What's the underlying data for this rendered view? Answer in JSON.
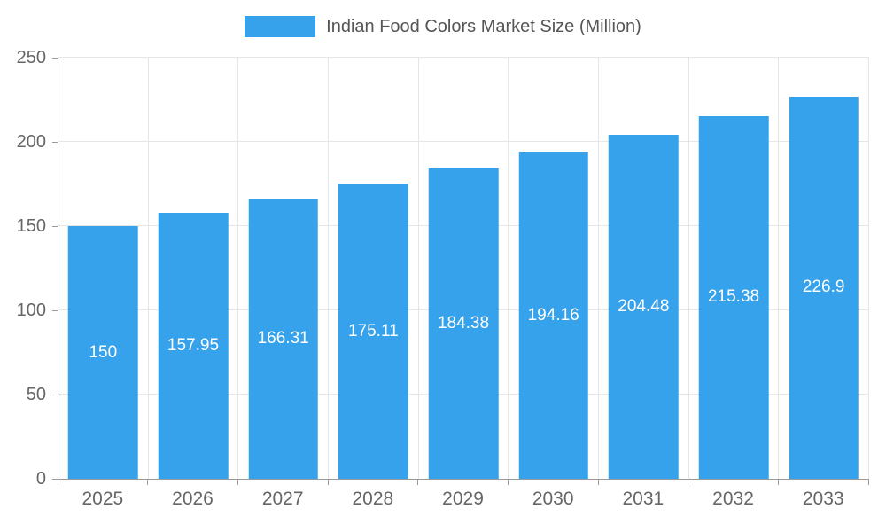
{
  "chart_data": {
    "type": "bar",
    "title": "Indian Food Colors Market Size (Million)",
    "categories": [
      "2025",
      "2026",
      "2027",
      "2028",
      "2029",
      "2030",
      "2031",
      "2032",
      "2033"
    ],
    "values": [
      150,
      157.95,
      166.31,
      175.11,
      184.38,
      194.16,
      204.48,
      215.38,
      226.9
    ],
    "value_labels": [
      "150",
      "157.95",
      "166.31",
      "175.11",
      "184.38",
      "194.16",
      "204.48",
      "215.38",
      "226.9"
    ],
    "xlabel": "",
    "ylabel": "",
    "ylim": [
      0,
      250
    ],
    "yticks": [
      0,
      50,
      100,
      150,
      200,
      250
    ],
    "grid": true,
    "legend_position": "top",
    "colors": {
      "bar": "#36A2EB",
      "bar_value_label": "#ffffff",
      "axis_text": "#666666",
      "legend_text": "#555555",
      "gridline": "#e6e6e6",
      "axis_line": "#999999",
      "background": "#ffffff"
    }
  }
}
